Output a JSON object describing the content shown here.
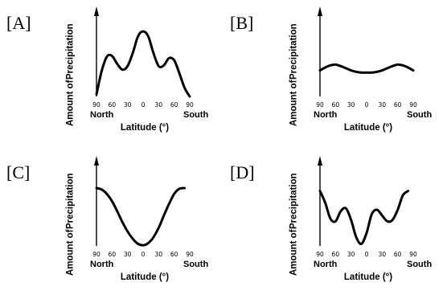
{
  "chart_data": [
    {
      "type": "line",
      "panel_label": "[A]",
      "ylabel": "Amount of Precipitation",
      "xlabel": "Latitude (°)",
      "xlabel_left": "North",
      "xlabel_right": "South",
      "x_ticks": [
        "90",
        "60",
        "30",
        "0",
        "30",
        "60",
        "90"
      ],
      "x": [
        -90,
        -80,
        -70,
        -60,
        -50,
        -40,
        -30,
        -20,
        -10,
        0,
        10,
        20,
        30,
        40,
        50,
        60,
        70,
        80,
        90
      ],
      "values": [
        0.03,
        0.35,
        0.55,
        0.56,
        0.45,
        0.37,
        0.42,
        0.6,
        0.83,
        0.9,
        0.83,
        0.6,
        0.42,
        0.43,
        0.53,
        0.5,
        0.32,
        0.12,
        0.0
      ],
      "ylim": [
        0,
        1
      ]
    },
    {
      "type": "line",
      "panel_label": "[B]",
      "ylabel": "Amount of Precipitation",
      "xlabel": "Latitude (°)",
      "xlabel_left": "North",
      "xlabel_right": "South",
      "x_ticks": [
        "90",
        "60",
        "30",
        "0",
        "30",
        "60",
        "90"
      ],
      "x": [
        -90,
        -80,
        -70,
        -60,
        -50,
        -40,
        -30,
        -20,
        -10,
        0,
        10,
        20,
        30,
        40,
        50,
        60,
        70,
        80,
        90
      ],
      "values": [
        0.36,
        0.4,
        0.43,
        0.44,
        0.42,
        0.39,
        0.36,
        0.34,
        0.33,
        0.33,
        0.33,
        0.34,
        0.36,
        0.39,
        0.42,
        0.44,
        0.43,
        0.4,
        0.36
      ],
      "ylim": [
        0,
        1
      ]
    },
    {
      "type": "line",
      "panel_label": "[C]",
      "ylabel": "Amount of Precipitation",
      "xlabel": "Latitude (°)",
      "xlabel_left": "North",
      "xlabel_right": "South",
      "x_ticks": [
        "90",
        "60",
        "30",
        "0",
        "30",
        "60",
        "90"
      ],
      "x": [
        -90,
        -80,
        -70,
        -60,
        -50,
        -40,
        -30,
        -20,
        -10,
        0,
        10,
        20,
        30,
        40,
        50,
        60,
        70,
        80
      ],
      "values": [
        0.8,
        0.78,
        0.72,
        0.62,
        0.48,
        0.33,
        0.2,
        0.1,
        0.03,
        0.01,
        0.04,
        0.12,
        0.25,
        0.42,
        0.58,
        0.72,
        0.79,
        0.8
      ],
      "ylim": [
        0,
        1
      ]
    },
    {
      "type": "line",
      "panel_label": "[D]",
      "ylabel": "Amount of Precipitation",
      "xlabel": "Latitude (°)",
      "xlabel_left": "North",
      "xlabel_right": "South",
      "x_ticks": [
        "90",
        "60",
        "30",
        "0",
        "30",
        "60",
        "90"
      ],
      "x": [
        -90,
        -80,
        -70,
        -60,
        -50,
        -40,
        -30,
        -20,
        -10,
        0,
        10,
        20,
        30,
        40,
        50,
        60,
        70,
        80
      ],
      "values": [
        0.76,
        0.6,
        0.38,
        0.34,
        0.48,
        0.52,
        0.36,
        0.12,
        0.03,
        0.18,
        0.44,
        0.5,
        0.42,
        0.34,
        0.36,
        0.5,
        0.7,
        0.76
      ],
      "ylim": [
        0,
        1
      ]
    }
  ]
}
